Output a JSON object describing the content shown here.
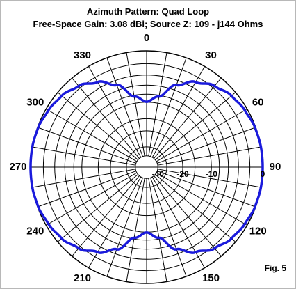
{
  "header": {
    "title": "Azimuth Pattern:  Quad Loop",
    "subtitle": "Free-Space Gain:  3.08 dBi; Source Z: 109 - j144 Ohms"
  },
  "figure_label": "Fig. 5",
  "colors": {
    "pattern": "#1a1adc",
    "grid": "#000000",
    "background": "#ffffff"
  },
  "chart_data": {
    "type": "polar",
    "title": "Azimuth Pattern:  Quad Loop",
    "subtitle": "Free-Space Gain:  3.08 dBi; Source Z: 109 - j144 Ohms",
    "angle_labels": [
      "0",
      "30",
      "60",
      "90",
      "120",
      "150",
      "180",
      "210",
      "240",
      "270",
      "300",
      "330"
    ],
    "angle_values": [
      0,
      30,
      60,
      90,
      120,
      150,
      180,
      210,
      240,
      270,
      300,
      330
    ],
    "radial_labels": [
      "-40",
      "-20",
      "-10",
      "0"
    ],
    "radial_values_db": [
      -40,
      -20,
      -10,
      0
    ],
    "radial_scale": "ARRL log-periodic (0.89 per 2 dB)",
    "grid_circles_db": [
      -40,
      -30,
      -20,
      -15,
      -10,
      -8,
      -6,
      -4,
      -2,
      0
    ],
    "spoke_step_deg": 10,
    "series": [
      {
        "azimuth_deg": [
          0,
          10,
          20,
          30,
          40,
          50,
          60,
          70,
          80,
          90,
          100,
          110,
          120,
          130,
          140,
          150,
          160,
          170,
          180,
          190,
          200,
          210,
          220,
          230,
          240,
          250,
          260,
          270,
          280,
          290,
          300,
          310,
          320,
          330,
          340,
          350
        ],
        "relative_gain_db": [
          -9.9,
          -8.3,
          -4.9,
          -2.9,
          -1.6,
          -0.8,
          -0.4,
          -0.1,
          0,
          0,
          0,
          -0.1,
          -0.4,
          -0.8,
          -1.6,
          -2.9,
          -4.9,
          -8.3,
          -9.9,
          -8.3,
          -4.9,
          -2.9,
          -1.6,
          -0.8,
          -0.4,
          -0.1,
          0,
          0,
          0,
          -0.1,
          -0.4,
          -0.8,
          -1.6,
          -2.9,
          -4.9,
          -8.3
        ]
      }
    ]
  }
}
